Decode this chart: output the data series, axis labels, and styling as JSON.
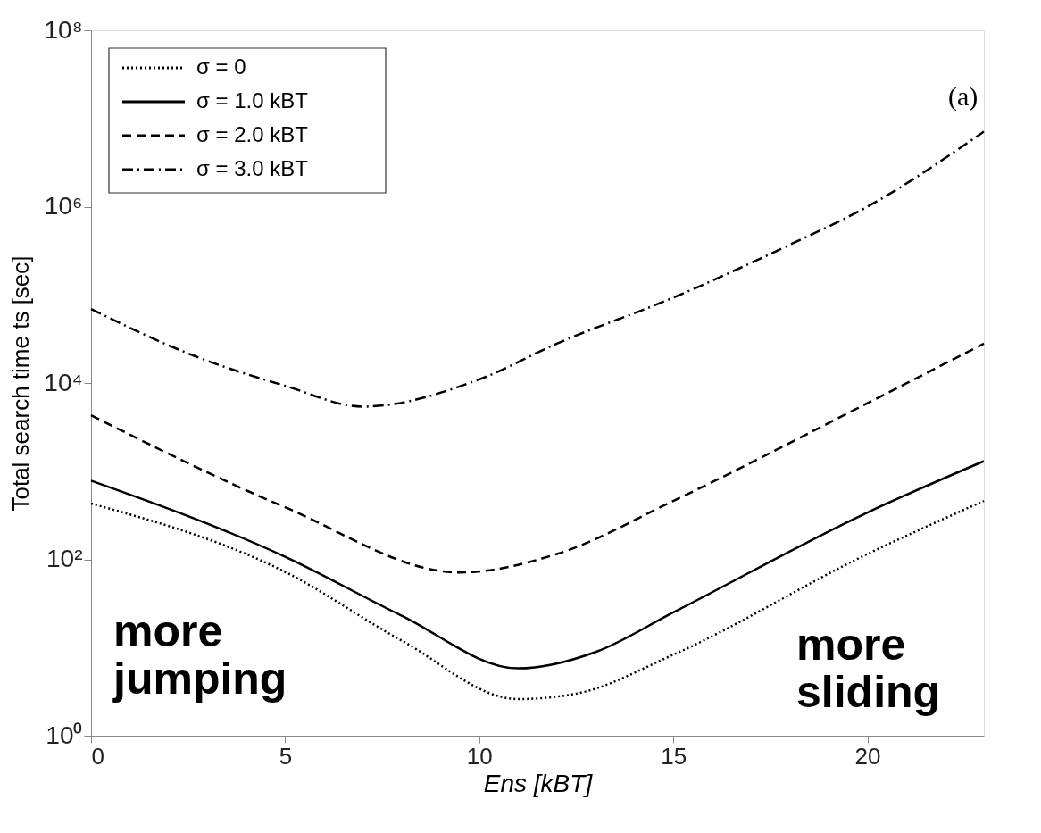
{
  "chart_data": {
    "type": "line",
    "xlabel": "Ens [kBT]",
    "ylabel": "Total search time ts [sec]",
    "log": "y",
    "xlim": [
      0,
      23
    ],
    "xticks": [
      0,
      5,
      10,
      15,
      20
    ],
    "ylim": [
      1,
      100000000
    ],
    "yticks": [
      {
        "value": 1,
        "label": "10⁰"
      },
      {
        "value": 100,
        "label": "10²"
      },
      {
        "value": 10000,
        "label": "10⁴"
      },
      {
        "value": 1000000,
        "label": "10⁶"
      },
      {
        "value": 100000000,
        "label": "10⁸"
      }
    ],
    "grid": false,
    "legend": "top left",
    "marker": "none",
    "annotations": [
      "(a)",
      "more\njumping",
      "more\nsliding"
    ],
    "series": [
      {
        "name": "σ = 0",
        "color": "#000000",
        "line_style": "dotted",
        "x": [
          0,
          5,
          8,
          11,
          12.5,
          15,
          20,
          23
        ],
        "values": [
          430,
          72,
          12,
          2.6,
          3.0,
          8.3,
          115,
          460
        ]
      },
      {
        "name": "σ = 1.0  kBT",
        "color": "#000000",
        "line_style": "solid",
        "x": [
          0,
          5,
          8,
          11,
          13,
          15,
          20,
          23
        ],
        "values": [
          780,
          107,
          23,
          5.8,
          8.9,
          25,
          340,
          1300
        ]
      },
      {
        "name": "σ = 2.0  kBT",
        "color": "#000000",
        "line_style": "dashed",
        "x": [
          0,
          5,
          9.5,
          12,
          15,
          20,
          23
        ],
        "values": [
          4300,
          390,
          71,
          115,
          460,
          5900,
          28000
        ]
      },
      {
        "name": "σ = 3.0  kBT",
        "color": "#000000",
        "line_style": "dashdot",
        "x": [
          0,
          2.7,
          5,
          7,
          10,
          12,
          15,
          18,
          20,
          23
        ],
        "values": [
          69000,
          20000,
          9300,
          5400,
          11000,
          28000,
          93000,
          370000,
          1000000,
          7100000
        ]
      }
    ]
  }
}
